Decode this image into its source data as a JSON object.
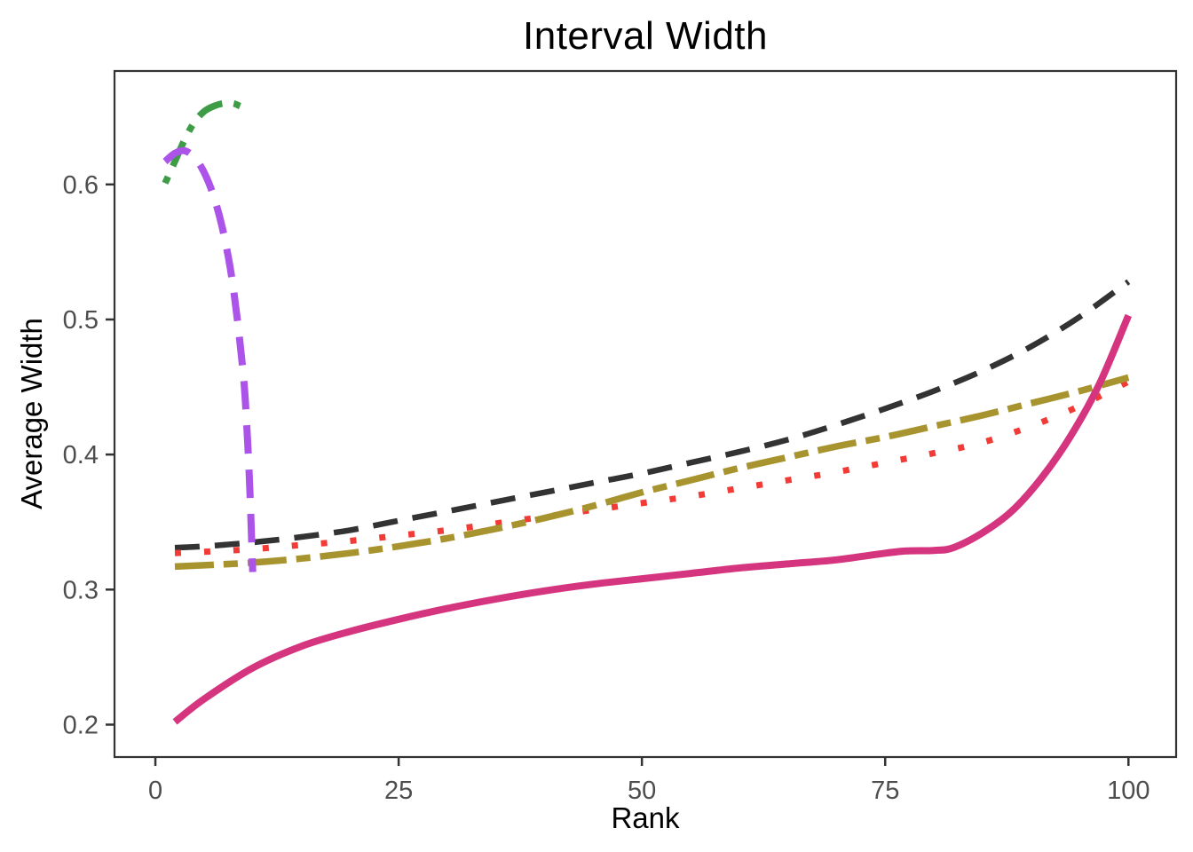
{
  "chart_data": {
    "type": "line",
    "title": "Interval Width",
    "xlabel": "Rank",
    "ylabel": "Average Width",
    "xlim": [
      -4.2,
      104.9
    ],
    "ylim": [
      0.176,
      0.684
    ],
    "x_ticks": [
      0,
      25,
      50,
      75,
      100
    ],
    "x_tick_labels": [
      "0",
      "25",
      "50",
      "75",
      "100"
    ],
    "y_ticks": [
      0.2,
      0.3,
      0.4,
      0.5,
      0.6
    ],
    "y_tick_labels": [
      "0.2",
      "0.3",
      "0.4",
      "0.5",
      "0.6"
    ],
    "grid": "off",
    "legend": "none",
    "panel_border_color": "#333333",
    "tick_mark_color": "#333333",
    "tick_label_color": "#4D4D4D",
    "series": [
      {
        "name": "black-dashed",
        "color": "#333333",
        "style": "dashed",
        "dash": "28 17",
        "width": 6.5,
        "points": [
          [
            2,
            0.331
          ],
          [
            5,
            0.332
          ],
          [
            10,
            0.335
          ],
          [
            15,
            0.339
          ],
          [
            20,
            0.344
          ],
          [
            25,
            0.351
          ],
          [
            30,
            0.358
          ],
          [
            35,
            0.365
          ],
          [
            40,
            0.372
          ],
          [
            45,
            0.379
          ],
          [
            50,
            0.386
          ],
          [
            55,
            0.394
          ],
          [
            60,
            0.402
          ],
          [
            65,
            0.411
          ],
          [
            70,
            0.422
          ],
          [
            75,
            0.434
          ],
          [
            80,
            0.447
          ],
          [
            85,
            0.462
          ],
          [
            90,
            0.48
          ],
          [
            95,
            0.502
          ],
          [
            100,
            0.528
          ]
        ]
      },
      {
        "name": "red-dotted",
        "color": "#F23B36",
        "style": "dotted",
        "dash": "7 26",
        "width": 7,
        "points": [
          [
            2,
            0.327
          ],
          [
            5,
            0.328
          ],
          [
            10,
            0.33
          ],
          [
            15,
            0.333
          ],
          [
            20,
            0.336
          ],
          [
            25,
            0.34
          ],
          [
            30,
            0.344
          ],
          [
            35,
            0.349
          ],
          [
            40,
            0.354
          ],
          [
            45,
            0.359
          ],
          [
            50,
            0.364
          ],
          [
            55,
            0.369
          ],
          [
            60,
            0.375
          ],
          [
            65,
            0.381
          ],
          [
            70,
            0.387
          ],
          [
            75,
            0.394
          ],
          [
            80,
            0.401
          ],
          [
            85,
            0.409
          ],
          [
            90,
            0.421
          ],
          [
            95,
            0.436
          ],
          [
            100,
            0.454
          ]
        ]
      },
      {
        "name": "olive-twodash",
        "color": "#A8942F",
        "style": "twodash",
        "dash": "44 11 16 11",
        "width": 7.5,
        "points": [
          [
            2,
            0.317
          ],
          [
            5,
            0.318
          ],
          [
            10,
            0.32
          ],
          [
            15,
            0.323
          ],
          [
            20,
            0.327
          ],
          [
            25,
            0.332
          ],
          [
            30,
            0.338
          ],
          [
            35,
            0.345
          ],
          [
            40,
            0.353
          ],
          [
            45,
            0.362
          ],
          [
            50,
            0.372
          ],
          [
            55,
            0.381
          ],
          [
            60,
            0.39
          ],
          [
            65,
            0.398
          ],
          [
            70,
            0.406
          ],
          [
            75,
            0.413
          ],
          [
            80,
            0.421
          ],
          [
            85,
            0.429
          ],
          [
            90,
            0.438
          ],
          [
            95,
            0.447
          ],
          [
            100,
            0.457
          ]
        ]
      },
      {
        "name": "magenta-solid",
        "color": "#D5357F",
        "style": "solid",
        "dash": "",
        "width": 8,
        "points": [
          [
            2,
            0.202
          ],
          [
            5,
            0.219
          ],
          [
            10,
            0.242
          ],
          [
            15,
            0.258
          ],
          [
            20,
            0.269
          ],
          [
            25,
            0.278
          ],
          [
            30,
            0.286
          ],
          [
            35,
            0.293
          ],
          [
            40,
            0.299
          ],
          [
            45,
            0.304
          ],
          [
            50,
            0.308
          ],
          [
            55,
            0.312
          ],
          [
            60,
            0.316
          ],
          [
            65,
            0.319
          ],
          [
            70,
            0.322
          ],
          [
            74,
            0.326
          ],
          [
            77,
            0.3285
          ],
          [
            80,
            0.329
          ],
          [
            82,
            0.331
          ],
          [
            85,
            0.342
          ],
          [
            88,
            0.358
          ],
          [
            91,
            0.382
          ],
          [
            94,
            0.413
          ],
          [
            97,
            0.452
          ],
          [
            100,
            0.503
          ]
        ]
      },
      {
        "name": "green-dotdash",
        "color": "#3E9C47",
        "style": "dotdash",
        "dash": "8 13 30 13",
        "width": 7.5,
        "points": [
          [
            1,
            0.601
          ],
          [
            2,
            0.617
          ],
          [
            3,
            0.633
          ],
          [
            4,
            0.646
          ],
          [
            5,
            0.654
          ],
          [
            6,
            0.658
          ],
          [
            7,
            0.66
          ],
          [
            8,
            0.66
          ],
          [
            8.7,
            0.658
          ]
        ]
      },
      {
        "name": "purple-dashed",
        "color": "#AC53E9",
        "style": "dashed",
        "dash": "32 18",
        "width": 8,
        "points": [
          [
            1,
            0.617
          ],
          [
            2,
            0.623
          ],
          [
            3,
            0.625
          ],
          [
            4,
            0.62
          ],
          [
            5,
            0.609
          ],
          [
            6,
            0.591
          ],
          [
            7,
            0.564
          ],
          [
            8,
            0.524
          ],
          [
            9,
            0.462
          ],
          [
            9.4,
            0.42
          ],
          [
            9.7,
            0.375
          ],
          [
            10,
            0.313
          ]
        ]
      }
    ]
  }
}
